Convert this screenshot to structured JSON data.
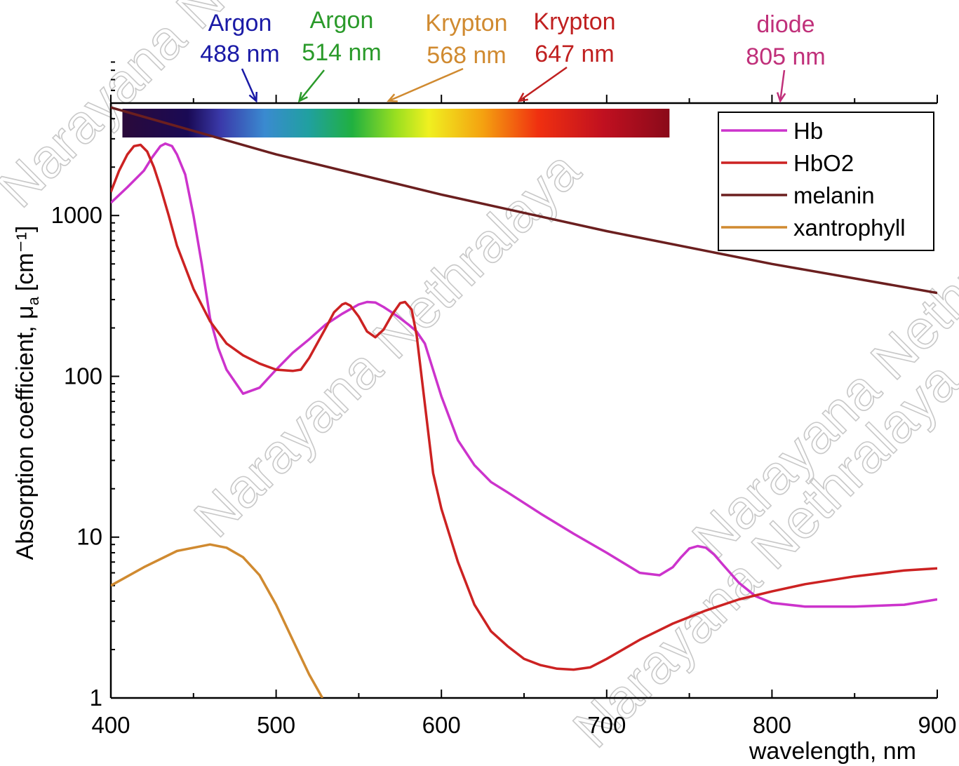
{
  "chart_data": {
    "type": "line",
    "xlabel": "wavelength, nm",
    "ylabel": "Absorption coefficient, μ",
    "ylabel_sub": "a",
    "ylabel_unit": "[cm⁻¹]",
    "xlim": [
      400,
      900
    ],
    "ylim": [
      1,
      5000
    ],
    "y_scale": "log",
    "x_ticks": [
      "400",
      "500",
      "600",
      "700",
      "800",
      "900"
    ],
    "y_ticks": [
      "1",
      "10",
      "100",
      "1000"
    ],
    "legend_position": "top-right",
    "spectrum_bar": {
      "x_start": 407,
      "x_end": 738
    },
    "series": [
      {
        "name": "Hb",
        "color": "#cc33cc",
        "x": [
          400,
          410,
          420,
          425,
          430,
          433,
          437,
          440,
          445,
          450,
          455,
          460,
          465,
          470,
          480,
          490,
          500,
          510,
          520,
          530,
          540,
          550,
          555,
          560,
          565,
          570,
          575,
          580,
          585,
          590,
          600,
          610,
          620,
          630,
          640,
          660,
          680,
          700,
          720,
          732,
          740,
          745,
          750,
          755,
          760,
          765,
          770,
          780,
          790,
          800,
          810,
          820,
          850,
          880,
          900
        ],
        "y": [
          1200,
          1500,
          1900,
          2300,
          2700,
          2800,
          2700,
          2400,
          1800,
          1000,
          500,
          230,
          150,
          110,
          78,
          85,
          110,
          140,
          170,
          210,
          245,
          280,
          290,
          288,
          270,
          250,
          230,
          210,
          190,
          160,
          75,
          40,
          28,
          22,
          19,
          14,
          10.5,
          8,
          6,
          5.8,
          6.5,
          7.5,
          8.5,
          8.8,
          8.6,
          7.8,
          6.8,
          5.2,
          4.3,
          3.9,
          3.8,
          3.7,
          3.7,
          3.8,
          4.1
        ]
      },
      {
        "name": "HbO2",
        "color": "#cc2222",
        "x": [
          400,
          405,
          410,
          414,
          418,
          422,
          426,
          430,
          435,
          440,
          450,
          460,
          470,
          480,
          490,
          500,
          510,
          515,
          520,
          530,
          535,
          540,
          542,
          545,
          550,
          555,
          560,
          565,
          570,
          575,
          578,
          582,
          585,
          588,
          592,
          595,
          600,
          610,
          620,
          630,
          640,
          650,
          660,
          670,
          680,
          690,
          700,
          720,
          740,
          760,
          780,
          800,
          820,
          850,
          880,
          900
        ],
        "y": [
          1400,
          1900,
          2400,
          2700,
          2750,
          2500,
          2000,
          1500,
          1000,
          650,
          350,
          220,
          160,
          135,
          120,
          110,
          108,
          110,
          130,
          200,
          250,
          280,
          285,
          275,
          235,
          190,
          175,
          195,
          240,
          285,
          290,
          260,
          180,
          100,
          45,
          25,
          15,
          7,
          3.8,
          2.6,
          2.1,
          1.75,
          1.6,
          1.52,
          1.5,
          1.55,
          1.75,
          2.3,
          2.9,
          3.5,
          4.1,
          4.6,
          5.1,
          5.7,
          6.2,
          6.4
        ]
      },
      {
        "name": "melanin",
        "color": "#6b1f1f",
        "x": [
          400,
          500,
          600,
          700,
          800,
          900
        ],
        "y": [
          4700,
          2400,
          1350,
          800,
          500,
          330
        ]
      },
      {
        "name": "xantrophyll",
        "color": "#d08a30",
        "x": [
          400,
          420,
          440,
          460,
          470,
          480,
          490,
          500,
          510,
          520,
          528
        ],
        "y": [
          5,
          6.5,
          8.2,
          9,
          8.6,
          7.5,
          5.8,
          3.8,
          2.3,
          1.4,
          1
        ]
      }
    ],
    "lasers": [
      {
        "name": "Argon",
        "wavelength": "488 nm",
        "x": 488,
        "color": "#1a1aa6"
      },
      {
        "name": "Argon",
        "wavelength": "514 nm",
        "x": 514,
        "color": "#2a9a2a"
      },
      {
        "name": "Krypton",
        "wavelength": "568 nm",
        "x": 568,
        "color": "#d08a30"
      },
      {
        "name": "Krypton",
        "wavelength": "647 nm",
        "x": 647,
        "color": "#c02020"
      },
      {
        "name": "diode",
        "wavelength": "805 nm",
        "x": 805,
        "color": "#c0307a"
      }
    ]
  },
  "watermark": "Narayana Nethralaya"
}
